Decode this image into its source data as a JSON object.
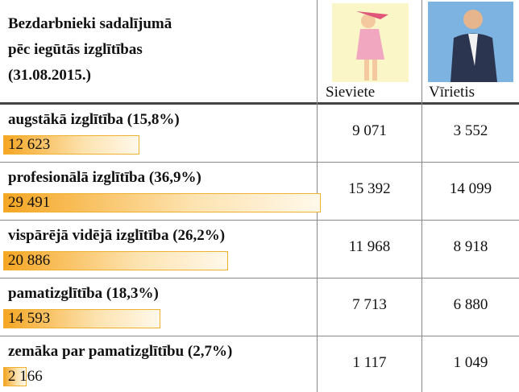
{
  "header": {
    "title": [
      "Bezdarbnieki sadalījumā",
      "pēc iegūtās izglītības",
      "(31.08.2015.)"
    ],
    "columns": [
      "Sieviete",
      "Vīrietis"
    ]
  },
  "table": {
    "rows": [
      {
        "label": "augstākā izglītība (15,8%)",
        "total": 12623,
        "total_label": "12 623",
        "female": "9 071",
        "male": "3 552"
      },
      {
        "label": "profesionālā izglītība (36,9%)",
        "total": 29491,
        "total_label": "29 491",
        "female": "15 392",
        "male": "14 099"
      },
      {
        "label": "vispārējā vidējā izglītība (26,2%)",
        "total": 20886,
        "total_label": "20 886",
        "female": "11 968",
        "male": "8 918"
      },
      {
        "label": "pamatizglītība (18,3%)",
        "total": 14593,
        "total_label": "14 593",
        "female": "7 713",
        "male": "6 880"
      },
      {
        "label": "zemāka par pamatizglītību (2,7%)",
        "total": 2166,
        "total_label": "2 166",
        "female": "1 117",
        "male": "1 049"
      }
    ]
  }
}
